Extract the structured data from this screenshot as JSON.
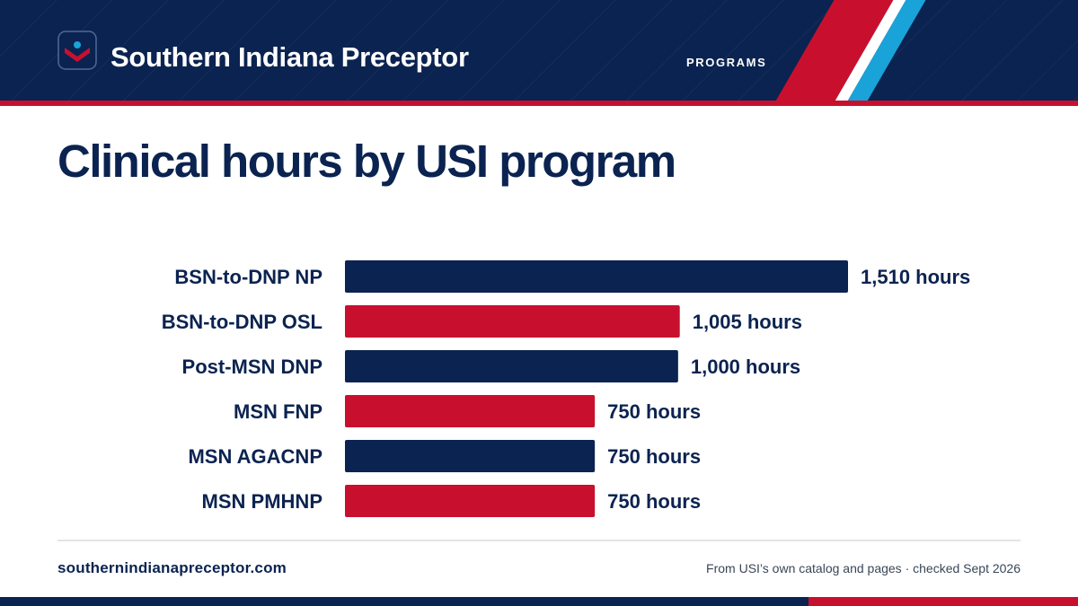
{
  "header": {
    "brand": "Southern Indiana Preceptor",
    "nav_label": "PROGRAMS",
    "logo_icon": "checkmark-badge-icon",
    "colors": {
      "navy": "#0b2350",
      "red": "#c8102e",
      "sky": "#1aa3d9"
    }
  },
  "chart_data": {
    "type": "bar",
    "orientation": "horizontal",
    "title": "Clinical hours by USI program",
    "categories": [
      "BSN-to-DNP NP",
      "BSN-to-DNP OSL",
      "Post-MSN DNP",
      "MSN FNP",
      "MSN AGACNP",
      "MSN PMHNP"
    ],
    "values": [
      1510,
      1005,
      1000,
      750,
      750,
      750
    ],
    "value_labels": [
      "1,510 hours",
      "1,005 hours",
      "1,000 hours",
      "750 hours",
      "750 hours",
      "750 hours"
    ],
    "bar_colors": [
      "#0b2350",
      "#c8102e",
      "#0b2350",
      "#c8102e",
      "#0b2350",
      "#c8102e"
    ],
    "xlim": [
      0,
      1510
    ],
    "grid": false,
    "legend": "none"
  },
  "footer": {
    "url": "southernindianapreceptor.com",
    "source": "From USI’s own catalog and pages · checked Sept 2026"
  }
}
